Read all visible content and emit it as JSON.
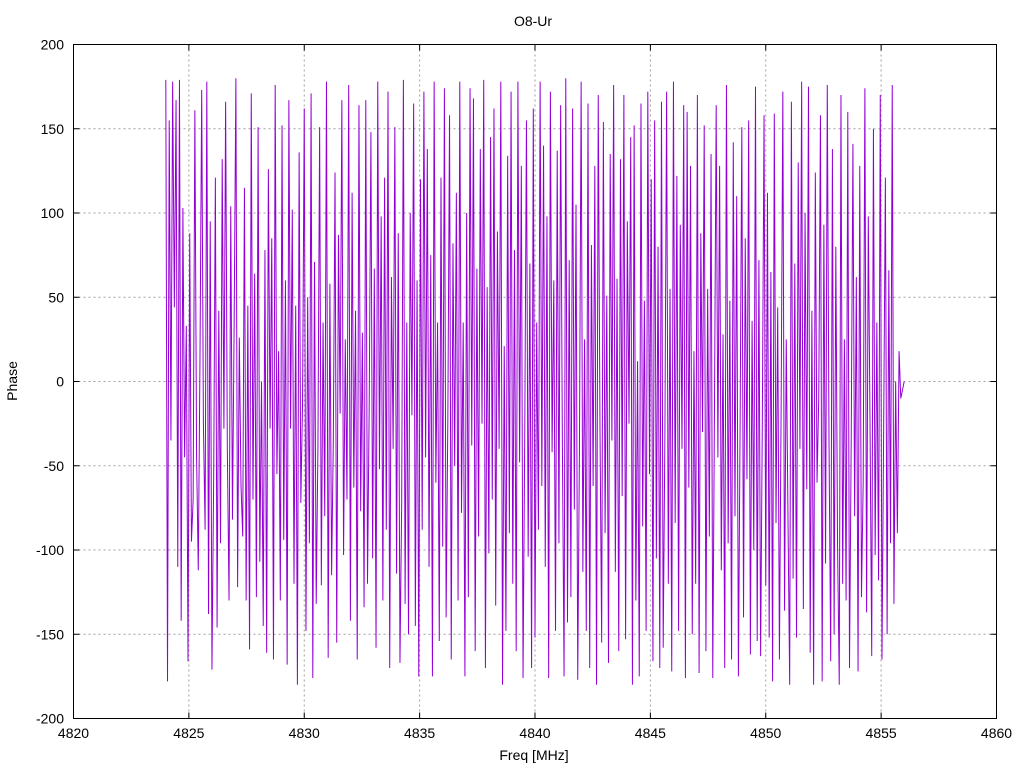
{
  "chart_data": {
    "type": "line",
    "title": "O8-Ur",
    "xlabel": "Freq [MHz]",
    "ylabel": "Phase",
    "xlim": [
      4820,
      4860
    ],
    "ylim": [
      -200,
      200
    ],
    "xticks": [
      4820,
      4825,
      4830,
      4835,
      4840,
      4845,
      4850,
      4855,
      4860
    ],
    "yticks": [
      -200,
      -150,
      -100,
      -50,
      0,
      50,
      100,
      150,
      200
    ],
    "grid": true,
    "series_color": "#9400d3",
    "series": [
      {
        "x_start": 4824.0,
        "x_end": 4856.0,
        "values": [
          179,
          -178,
          155,
          -35,
          178,
          44,
          167,
          -110,
          179,
          -142,
          103,
          -45,
          33,
          -166,
          88,
          -95,
          -70,
          161,
          -44,
          -112,
          14,
          173,
          -25,
          -88,
          178,
          -138,
          95,
          -171,
          -58,
          121,
          -146,
          42,
          -96,
          132,
          -28,
          166,
          -40,
          -130,
          104,
          -82,
          36,
          180,
          -122,
          26,
          -62,
          -92,
          115,
          -130,
          45,
          -159,
          171,
          -70,
          64,
          -128,
          151,
          -107,
          0,
          -145,
          78,
          -161,
          126,
          -28,
          85,
          -165,
          176,
          -55,
          18,
          -130,
          152,
          -94,
          60,
          -168,
          167,
          -28,
          102,
          -120,
          45,
          -180,
          136,
          -72,
          -13,
          162,
          -148,
          50,
          -96,
          171,
          -176,
          71,
          -132,
          -40,
          151,
          -121,
          35,
          -80,
          178,
          -164,
          58,
          -115,
          -35,
          124,
          -155,
          87,
          -19,
          167,
          -103,
          25,
          -70,
          176,
          -142,
          112,
          -63,
          42,
          -165,
          164,
          -77,
          29,
          -134,
          167,
          -120,
          -15,
          148,
          -105,
          67,
          -158,
          178,
          -52,
          98,
          -130,
          121,
          -88,
          172,
          -170,
          62,
          -40,
          151,
          -114,
          88,
          -167,
          -72,
          179,
          -132,
          35,
          -150,
          100,
          -20,
          165,
          -145,
          60,
          -175,
          120,
          -88,
          172,
          -45,
          138,
          -110,
          75,
          -175,
          178,
          -60,
          35,
          -154,
          121,
          -98,
          174,
          -140,
          -23,
          158,
          -165,
          82,
          -50,
          112,
          -130,
          178,
          -78,
          35,
          -175,
          100,
          -128,
          174,
          -38,
          168,
          -160,
          67,
          -92,
          138,
          -25,
          179,
          -170,
          56,
          -102,
          145,
          -70,
          162,
          -133,
          89,
          -40,
          178,
          -180,
          21,
          -148,
          134,
          -90,
          172,
          -120,
          78,
          -160,
          178,
          -48,
          128,
          -176,
          -32,
          155,
          -104,
          70,
          -170,
          162,
          -152,
          35,
          -88,
          178,
          -62,
          140,
          -110,
          98,
          -176,
          172,
          -42,
          60,
          -148,
          137,
          -96,
          164,
          -35,
          -175,
          180,
          -143,
          72,
          -128,
          162,
          -76,
          105,
          -177,
          -40,
          178,
          -113,
          25,
          -148,
          165,
          -170,
          81,
          -62,
          128,
          -180,
          170,
          -24,
          -155,
          154,
          -90,
          51,
          -167,
          135,
          -35,
          176,
          -113,
          61,
          -160,
          132,
          -68,
          170,
          -153,
          95,
          -25,
          145,
          -180,
          152,
          -130,
          12,
          -175,
          165,
          -86,
          48,
          -148,
          172,
          -55,
          120,
          -166,
          155,
          -105,
          80,
          -170,
          166,
          -158,
          -32,
          172,
          -120,
          55,
          -172,
          178,
          -84,
          122,
          -148,
          93,
          -40,
          164,
          -176,
          160,
          -63,
          128,
          -150,
          18,
          -120,
          170,
          -173,
          88,
          -30,
          152,
          -160,
          55,
          -92,
          135,
          -176,
          -16,
          164,
          -45,
          128,
          -112,
          28,
          -170,
          176,
          -96,
          48,
          -165,
          142,
          -80,
          110,
          -175,
          -25,
          151,
          -140,
          85,
          -58,
          155,
          -162,
          36,
          -100,
          175,
          -154,
          72,
          -163,
          -23,
          158,
          -121,
          112,
          -152,
          65,
          -178,
          159,
          -84,
          44,
          -165,
          -15,
          172,
          -136,
          25,
          -80,
          -180,
          166,
          -117,
          70,
          -152,
          130,
          -40,
          178,
          -135,
          100,
          -64,
          175,
          -161,
          42,
          -180,
          124,
          -60,
          -10,
          158,
          -178,
          93,
          -108,
          176,
          -34,
          -166,
          138,
          -150,
          80,
          -96,
          -180,
          170,
          -120,
          25,
          -130,
          160,
          -170,
          -35,
          141,
          -80,
          62,
          -172,
          128,
          -128,
          -60,
          174,
          -137,
          98,
          -24,
          -163,
          150,
          -103,
          35,
          -118,
          170,
          -165,
          -25,
          121,
          -150,
          66,
          -96,
          176,
          -132,
          0,
          -90,
          18,
          -10,
          -5,
          0
        ]
      }
    ]
  }
}
